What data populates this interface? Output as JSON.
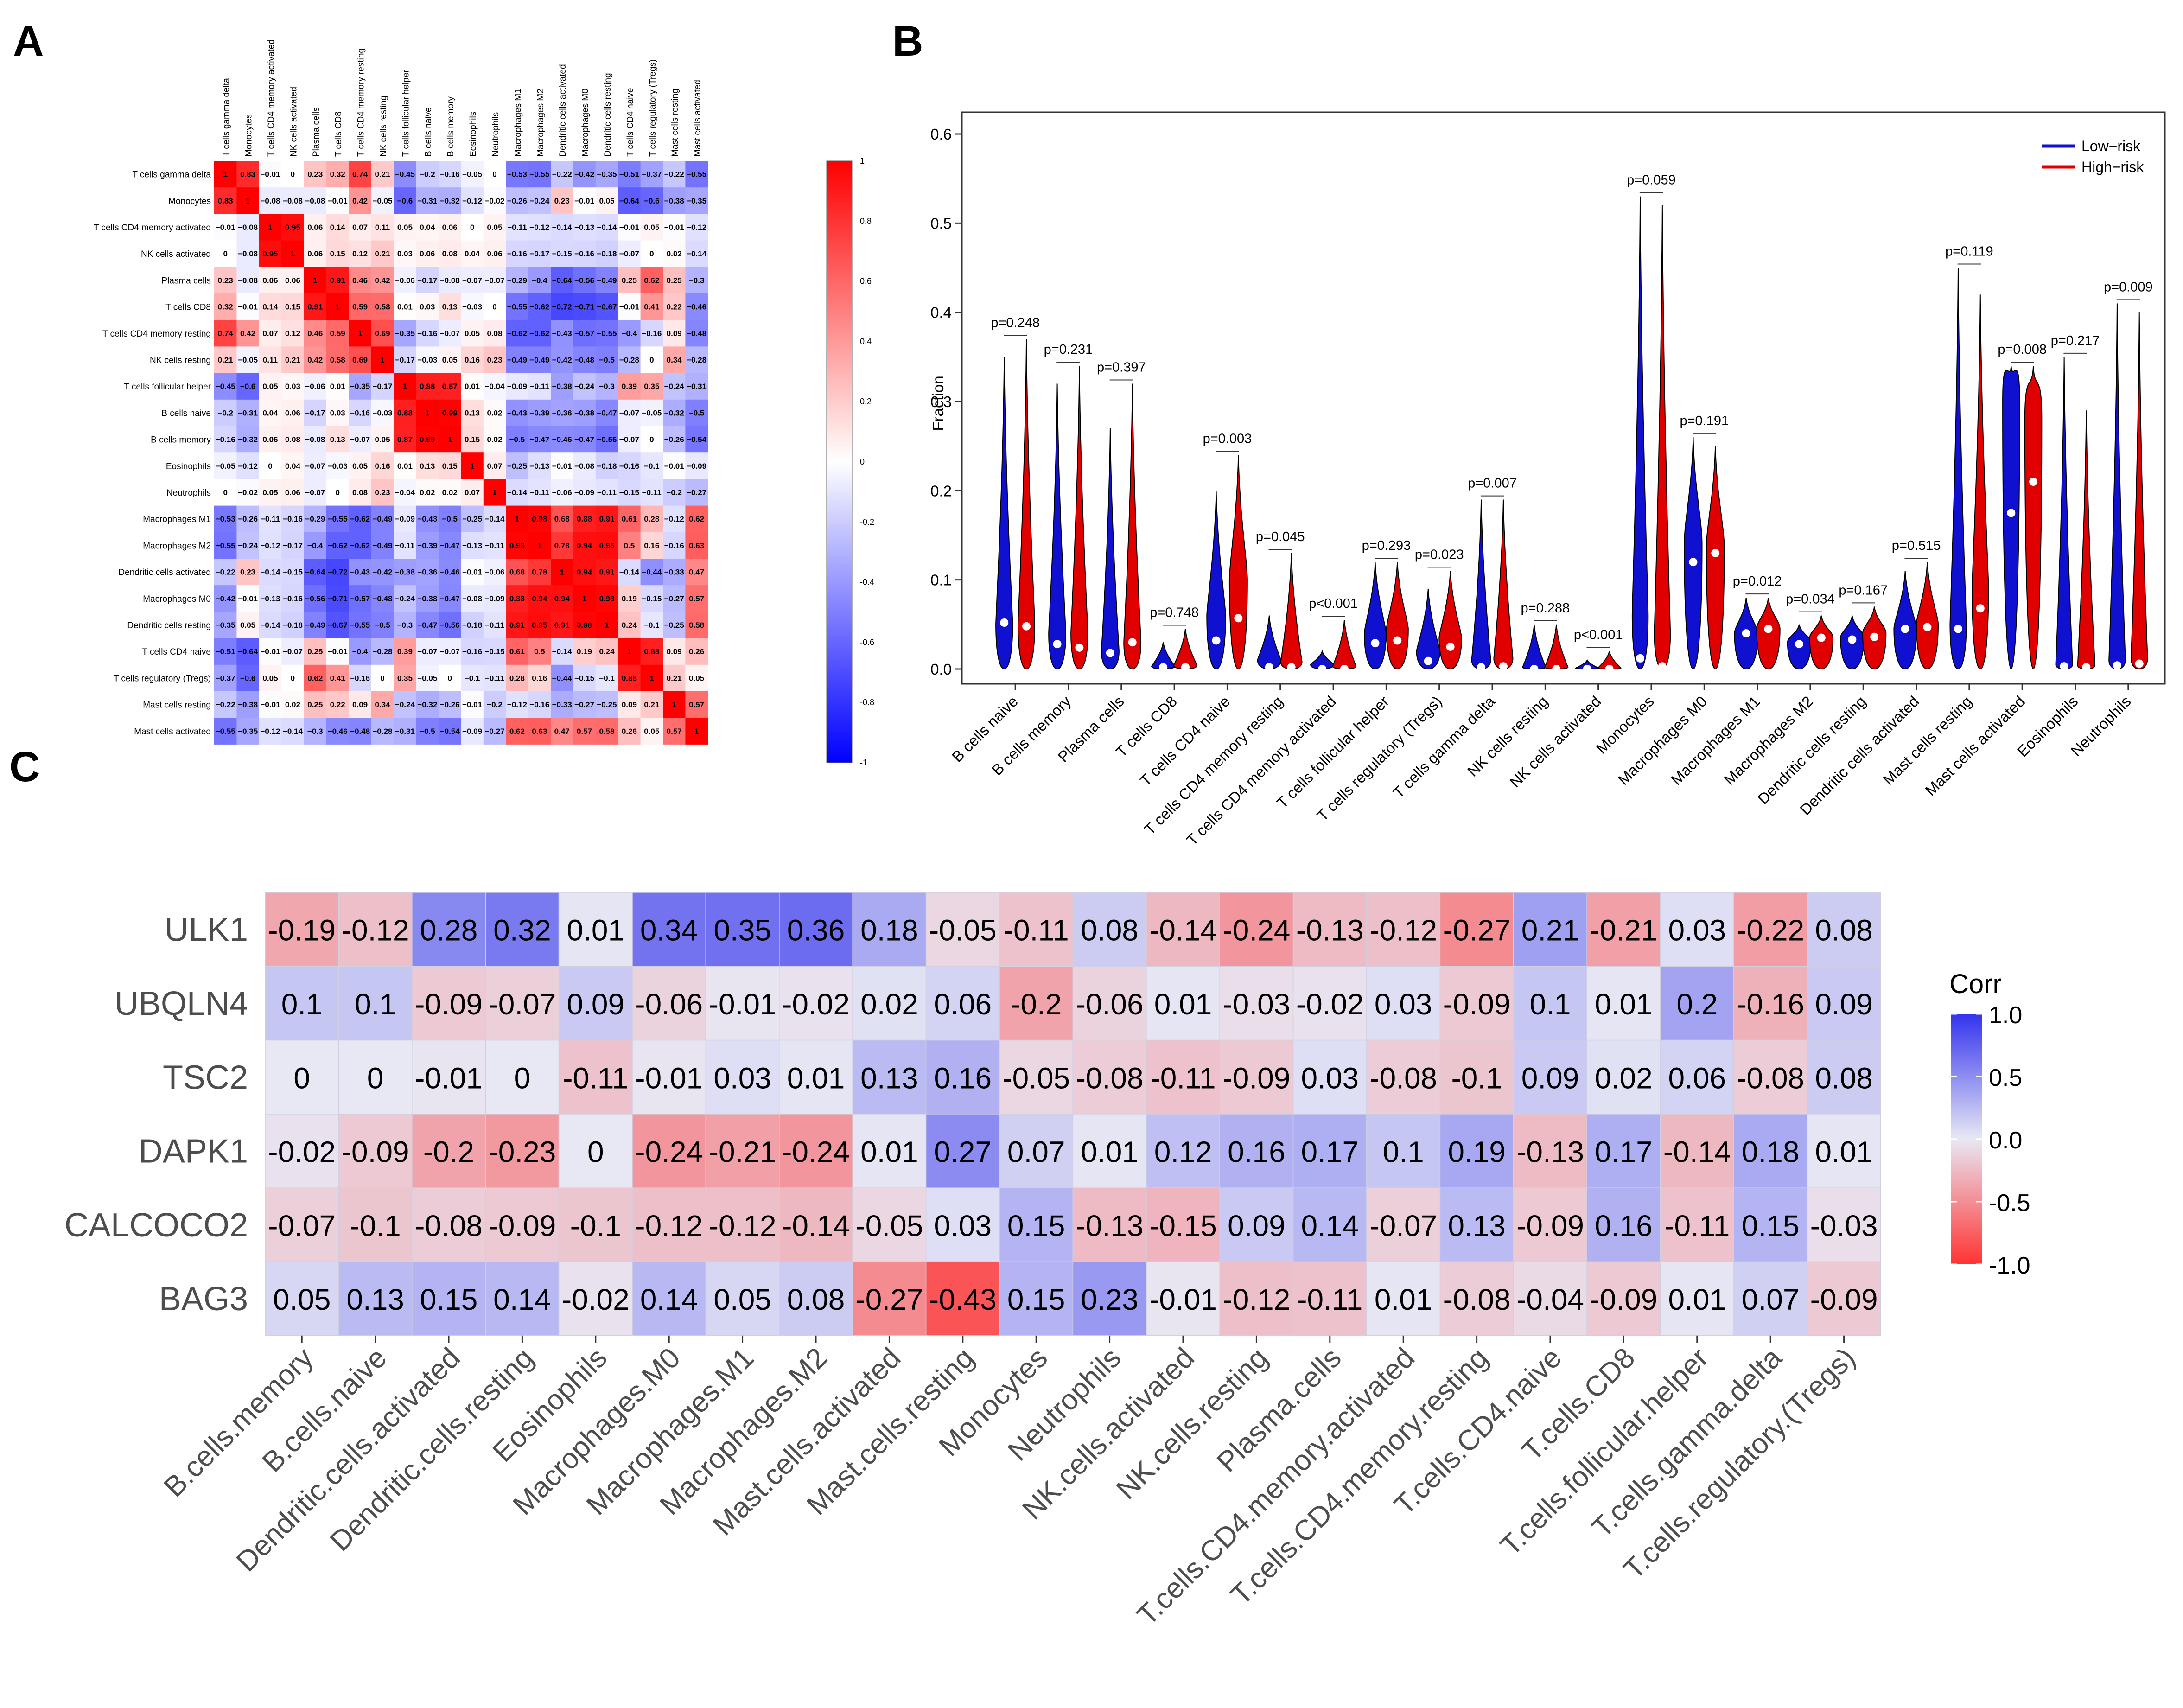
{
  "panels": {
    "a": "A",
    "b": "B",
    "c": "C"
  },
  "chart_data": [
    {
      "panel": "A",
      "type": "heatmap",
      "title": "",
      "row_labels": [
        "T cells gamma delta",
        "Monocytes",
        "T cells CD4 memory activated",
        "NK cells activated",
        "Plasma cells",
        "T cells CD8",
        "T cells CD4 memory resting",
        "NK cells resting",
        "T cells follicular helper",
        "B cells naive",
        "B cells memory",
        "Eosinophils",
        "Neutrophils",
        "Macrophages M1",
        "Macrophages M2",
        "Dendritic cells activated",
        "Macrophages M0",
        "Dendritic cells resting",
        "T cells CD4 naive",
        "T cells regulatory (Tregs)",
        "Mast cells resting",
        "Mast cells activated"
      ],
      "col_labels": [
        "T cells gamma delta",
        "Monocytes",
        "T cells CD4 memory activated",
        "NK cells activated",
        "Plasma cells",
        "T cells CD8",
        "T cells CD4 memory resting",
        "NK cells resting",
        "T cells follicular helper",
        "B cells naive",
        "B cells memory",
        "Eosinophils",
        "Neutrophils",
        "Macrophages M1",
        "Macrophages M2",
        "Dendritic cells activated",
        "Macrophages M0",
        "Dendritic cells resting",
        "T cells CD4 naive",
        "T cells regulatory (Tregs)",
        "Mast cells resting",
        "Mast cells activated"
      ],
      "values": [
        [
          1,
          0.83,
          -0.01,
          0,
          0.23,
          0.32,
          0.74,
          0.21,
          -0.45,
          -0.2,
          -0.16,
          -0.05,
          0,
          -0.53,
          -0.55,
          -0.22,
          -0.42,
          -0.35,
          -0.51,
          -0.37,
          -0.22,
          -0.55
        ],
        [
          0.83,
          1,
          -0.08,
          -0.08,
          -0.08,
          -0.01,
          0.42,
          -0.05,
          -0.6,
          -0.31,
          -0.32,
          -0.12,
          -0.02,
          -0.26,
          -0.24,
          0.23,
          -0.01,
          0.05,
          -0.64,
          -0.6,
          -0.38,
          -0.35
        ],
        [
          -0.01,
          -0.08,
          1,
          0.95,
          0.06,
          0.14,
          0.07,
          0.11,
          0.05,
          0.04,
          0.06,
          0,
          0.05,
          -0.11,
          -0.12,
          -0.14,
          -0.13,
          -0.14,
          -0.01,
          0.05,
          -0.01,
          -0.12
        ],
        [
          0,
          -0.08,
          0.95,
          1,
          0.06,
          0.15,
          0.12,
          0.21,
          0.03,
          0.06,
          0.08,
          0.04,
          0.06,
          -0.16,
          -0.17,
          -0.15,
          -0.16,
          -0.18,
          -0.07,
          0,
          0.02,
          -0.14
        ],
        [
          0.23,
          -0.08,
          0.06,
          0.06,
          1,
          0.91,
          0.46,
          0.42,
          -0.06,
          -0.17,
          -0.08,
          -0.07,
          -0.07,
          -0.29,
          -0.4,
          -0.64,
          -0.56,
          -0.49,
          0.25,
          0.62,
          0.25,
          -0.3
        ],
        [
          0.32,
          -0.01,
          0.14,
          0.15,
          0.91,
          1,
          0.59,
          0.58,
          0.01,
          0.03,
          0.13,
          -0.03,
          0,
          -0.55,
          -0.62,
          -0.72,
          -0.71,
          -0.67,
          -0.01,
          0.41,
          0.22,
          -0.46
        ],
        [
          0.74,
          0.42,
          0.07,
          0.12,
          0.46,
          0.59,
          1,
          0.69,
          -0.35,
          -0.16,
          -0.07,
          0.05,
          0.08,
          -0.62,
          -0.62,
          -0.43,
          -0.57,
          -0.55,
          -0.4,
          -0.16,
          0.09,
          -0.48
        ],
        [
          0.21,
          -0.05,
          0.11,
          0.21,
          0.42,
          0.58,
          0.69,
          1,
          -0.17,
          -0.03,
          0.05,
          0.16,
          0.23,
          -0.49,
          -0.49,
          -0.42,
          -0.48,
          -0.5,
          -0.28,
          0,
          0.34,
          -0.28
        ],
        [
          -0.45,
          -0.6,
          0.05,
          0.03,
          -0.06,
          0.01,
          -0.35,
          -0.17,
          1,
          0.88,
          0.87,
          0.01,
          -0.04,
          -0.09,
          -0.11,
          -0.38,
          -0.24,
          -0.3,
          0.39,
          0.35,
          -0.24,
          -0.31
        ],
        [
          -0.2,
          -0.31,
          0.04,
          0.06,
          -0.17,
          0.03,
          -0.16,
          -0.03,
          0.88,
          1,
          0.99,
          0.13,
          0.02,
          -0.43,
          -0.39,
          -0.36,
          -0.38,
          -0.47,
          -0.07,
          -0.05,
          -0.32,
          -0.5
        ],
        [
          -0.16,
          -0.32,
          0.06,
          0.08,
          -0.08,
          0.13,
          -0.07,
          0.05,
          0.87,
          0.99,
          1,
          0.15,
          0.02,
          -0.5,
          -0.47,
          -0.46,
          -0.47,
          -0.56,
          -0.07,
          0,
          -0.26,
          -0.54
        ],
        [
          -0.05,
          -0.12,
          0,
          0.04,
          -0.07,
          -0.03,
          0.05,
          0.16,
          0.01,
          0.13,
          0.15,
          1,
          0.07,
          -0.25,
          -0.13,
          -0.01,
          -0.08,
          -0.18,
          -0.16,
          -0.1,
          -0.01,
          -0.09
        ],
        [
          0,
          -0.02,
          0.05,
          0.06,
          -0.07,
          0,
          0.08,
          0.23,
          -0.04,
          0.02,
          0.02,
          0.07,
          1,
          -0.14,
          -0.11,
          -0.06,
          -0.09,
          -0.11,
          -0.15,
          -0.11,
          -0.2,
          -0.27
        ],
        [
          -0.53,
          -0.26,
          -0.11,
          -0.16,
          -0.29,
          -0.55,
          -0.62,
          -0.49,
          -0.09,
          -0.43,
          -0.5,
          -0.25,
          -0.14,
          1,
          0.98,
          0.68,
          0.88,
          0.91,
          0.61,
          0.28,
          -0.12,
          0.62
        ],
        [
          -0.55,
          -0.24,
          -0.12,
          -0.17,
          -0.4,
          -0.62,
          -0.62,
          -0.49,
          -0.11,
          -0.39,
          -0.47,
          -0.13,
          -0.11,
          0.98,
          1,
          0.78,
          0.94,
          0.95,
          0.5,
          0.16,
          -0.16,
          0.63
        ],
        [
          -0.22,
          0.23,
          -0.14,
          -0.15,
          -0.64,
          -0.72,
          -0.43,
          -0.42,
          -0.38,
          -0.36,
          -0.46,
          -0.01,
          -0.06,
          0.68,
          0.78,
          1,
          0.94,
          0.91,
          -0.14,
          -0.44,
          -0.33,
          0.47
        ],
        [
          -0.42,
          -0.01,
          -0.13,
          -0.16,
          -0.56,
          -0.71,
          -0.57,
          -0.48,
          -0.24,
          -0.38,
          -0.47,
          -0.08,
          -0.09,
          0.88,
          0.94,
          0.94,
          1,
          0.98,
          0.19,
          -0.15,
          -0.27,
          0.57
        ],
        [
          -0.35,
          0.05,
          -0.14,
          -0.18,
          -0.49,
          -0.67,
          -0.55,
          -0.5,
          -0.3,
          -0.47,
          -0.56,
          -0.18,
          -0.11,
          0.91,
          0.95,
          0.91,
          0.98,
          1,
          0.24,
          -0.1,
          -0.25,
          0.58
        ],
        [
          -0.51,
          -0.64,
          -0.01,
          -0.07,
          0.25,
          -0.01,
          -0.4,
          -0.28,
          0.39,
          -0.07,
          -0.07,
          -0.16,
          -0.15,
          0.61,
          0.5,
          -0.14,
          0.19,
          0.24,
          1,
          0.88,
          0.09,
          0.26
        ],
        [
          -0.37,
          -0.6,
          0.05,
          0,
          0.62,
          0.41,
          -0.16,
          0,
          0.35,
          -0.05,
          0,
          -0.1,
          -0.11,
          0.28,
          0.16,
          -0.44,
          -0.15,
          -0.1,
          0.88,
          1,
          0.21,
          0.05
        ],
        [
          -0.22,
          -0.38,
          -0.01,
          0.02,
          0.25,
          0.22,
          0.09,
          0.34,
          -0.24,
          -0.32,
          -0.26,
          -0.01,
          -0.2,
          -0.12,
          -0.16,
          -0.33,
          -0.27,
          -0.25,
          0.09,
          0.21,
          1,
          0.57
        ],
        [
          -0.55,
          -0.35,
          -0.12,
          -0.14,
          -0.3,
          -0.46,
          -0.48,
          -0.28,
          -0.31,
          -0.5,
          -0.54,
          -0.09,
          -0.27,
          0.62,
          0.63,
          0.47,
          0.57,
          0.58,
          0.26,
          0.05,
          0.57,
          1
        ]
      ],
      "colorbar_ticks": [
        "1",
        "0.8",
        "0.6",
        "0.4",
        "0.2",
        "0",
        "-0.2",
        "-0.4",
        "-0.6",
        "-0.8",
        "-1"
      ],
      "colors": {
        "neg": "#0000ff",
        "mid": "#ffffff",
        "pos": "#ff0000"
      }
    },
    {
      "panel": "B",
      "type": "violin",
      "ylabel": "Fraction",
      "ylim": [
        0,
        0.6
      ],
      "yticks": [
        "0.0",
        "0.1",
        "0.2",
        "0.3",
        "0.4",
        "0.5",
        "0.6"
      ],
      "legend": {
        "position": "top-right",
        "items": [
          {
            "name": "Low−risk",
            "color": "#1010d0"
          },
          {
            "name": "High−risk",
            "color": "#e00000"
          }
        ]
      },
      "categories": [
        "B cells naive",
        "B cells memory",
        "Plasma cells",
        "T cells CD8",
        "T cells CD4 naive",
        "T cells CD4 memory resting",
        "T cells CD4 memory activated",
        "T cells follicular helper",
        "T cells regulatory (Tregs)",
        "T cells gamma delta",
        "NK cells resting",
        "NK cells activated",
        "Monocytes",
        "Macrophages M0",
        "Macrophages M1",
        "Macrophages M2",
        "Dendritic cells resting",
        "Dendritic cells activated",
        "Mast cells resting",
        "Mast cells activated",
        "Eosinophils",
        "Neutrophils"
      ],
      "pvalues": [
        "p=0.248",
        "p=0.231",
        "p=0.397",
        "p=0.748",
        "p=0.003",
        "p=0.045",
        "p<0.001",
        "p=0.293",
        "p=0.023",
        "p=0.007",
        "p=0.288",
        "p<0.001",
        "p=0.059",
        "p=0.191",
        "p=0.012",
        "p=0.034",
        "p=0.167",
        "p=0.515",
        "p=0.119",
        "p=0.008",
        "p=0.217",
        "p=0.009"
      ],
      "series": [
        {
          "name": "Low−risk",
          "max": [
            0.35,
            0.32,
            0.27,
            0.03,
            0.2,
            0.06,
            0.02,
            0.12,
            0.09,
            0.19,
            0.05,
            0.01,
            0.53,
            0.26,
            0.08,
            0.05,
            0.06,
            0.11,
            0.45,
            0.34,
            0.35,
            0.41
          ],
          "median": [
            0.052,
            0.028,
            0.018,
            0.002,
            0.032,
            0.002,
            0.0,
            0.029,
            0.009,
            0.002,
            0.0,
            0.0,
            0.012,
            0.12,
            0.04,
            0.028,
            0.033,
            0.045,
            0.045,
            0.175,
            0.003,
            0.004
          ],
          "mode": [
            0.05,
            0.04,
            0.02,
            0.003,
            0.06,
            0.01,
            0.005,
            0.04,
            0.02,
            0.01,
            0.002,
            0.001,
            0.06,
            0.14,
            0.04,
            0.03,
            0.035,
            0.045,
            0.05,
            0.3,
            0.005,
            0.01
          ]
        },
        {
          "name": "High−risk",
          "max": [
            0.37,
            0.34,
            0.32,
            0.045,
            0.24,
            0.13,
            0.055,
            0.12,
            0.11,
            0.19,
            0.05,
            0.02,
            0.52,
            0.25,
            0.08,
            0.06,
            0.07,
            0.12,
            0.42,
            0.34,
            0.29,
            0.4
          ],
          "median": [
            0.048,
            0.024,
            0.03,
            0.002,
            0.057,
            0.002,
            0.0,
            0.032,
            0.025,
            0.003,
            0.0,
            0.0,
            0.003,
            0.13,
            0.045,
            0.035,
            0.036,
            0.047,
            0.068,
            0.21,
            0.002,
            0.006
          ],
          "mode": [
            0.05,
            0.04,
            0.03,
            0.004,
            0.1,
            0.008,
            0.003,
            0.045,
            0.035,
            0.012,
            0.002,
            0.001,
            0.04,
            0.135,
            0.045,
            0.035,
            0.04,
            0.05,
            0.09,
            0.28,
            0.004,
            0.012
          ]
        }
      ]
    },
    {
      "panel": "C",
      "type": "heatmap",
      "legend_title": "Corr",
      "colorbar_ticks": [
        "1.0",
        "0.5",
        "0.0",
        "-0.5",
        "-1.0"
      ],
      "colors": {
        "neg": "#ff3333",
        "mid": "#e8e8f4",
        "pos": "#3333ee"
      },
      "row_labels": [
        "ULK1",
        "UBQLN4",
        "TSC2",
        "DAPK1",
        "CALCOCO2",
        "BAG3"
      ],
      "col_labels": [
        "B.cells.memory",
        "B.cells.naive",
        "Dendritic.cells.activated",
        "Dendritic.cells.resting",
        "Eosinophils",
        "Macrophages.M0",
        "Macrophages.M1",
        "Macrophages.M2",
        "Mast.cells.activated",
        "Mast.cells.resting",
        "Monocytes",
        "Neutrophils",
        "NK.cells.activated",
        "NK.cells.resting",
        "Plasma.cells",
        "T.cells.CD4.memory.activated",
        "T.cells.CD4.memory.resting",
        "T.cells.CD4.naive",
        "T.cells.CD8",
        "T.cells.follicular.helper",
        "T.cells.gamma.delta",
        "T.cells.regulatory.(Tregs)"
      ],
      "values": [
        [
          -0.19,
          -0.12,
          0.28,
          0.32,
          0.01,
          0.34,
          0.35,
          0.36,
          0.18,
          -0.05,
          -0.11,
          0.08,
          -0.14,
          -0.24,
          -0.13,
          -0.12,
          -0.27,
          0.21,
          -0.21,
          0.03,
          -0.22,
          0.08
        ],
        [
          0.1,
          0.1,
          -0.09,
          -0.07,
          0.09,
          -0.06,
          -0.01,
          -0.02,
          0.02,
          0.06,
          -0.2,
          -0.06,
          0.01,
          -0.03,
          -0.02,
          0.03,
          -0.09,
          0.1,
          0.01,
          0.2,
          -0.16,
          0.09
        ],
        [
          0,
          0,
          -0.01,
          0,
          -0.11,
          -0.01,
          0.03,
          0.01,
          0.13,
          0.16,
          -0.05,
          -0.08,
          -0.11,
          -0.09,
          0.03,
          -0.08,
          -0.1,
          0.09,
          0.02,
          0.06,
          -0.08,
          0.08
        ],
        [
          -0.02,
          -0.09,
          -0.2,
          -0.23,
          0,
          -0.24,
          -0.21,
          -0.24,
          0.01,
          0.27,
          0.07,
          0.01,
          0.12,
          0.16,
          0.17,
          0.1,
          0.19,
          -0.13,
          0.17,
          -0.14,
          0.18,
          0.01
        ],
        [
          -0.07,
          -0.1,
          -0.08,
          -0.09,
          -0.1,
          -0.12,
          -0.12,
          -0.14,
          -0.05,
          0.03,
          0.15,
          -0.13,
          -0.15,
          0.09,
          0.14,
          -0.07,
          0.13,
          -0.09,
          0.16,
          -0.11,
          0.15,
          -0.03
        ],
        [
          0.05,
          0.13,
          0.15,
          0.14,
          -0.02,
          0.14,
          0.05,
          0.08,
          -0.27,
          -0.43,
          0.15,
          0.23,
          -0.01,
          -0.12,
          -0.11,
          0.01,
          -0.08,
          -0.04,
          -0.09,
          0.01,
          0.07,
          -0.09
        ]
      ]
    }
  ]
}
